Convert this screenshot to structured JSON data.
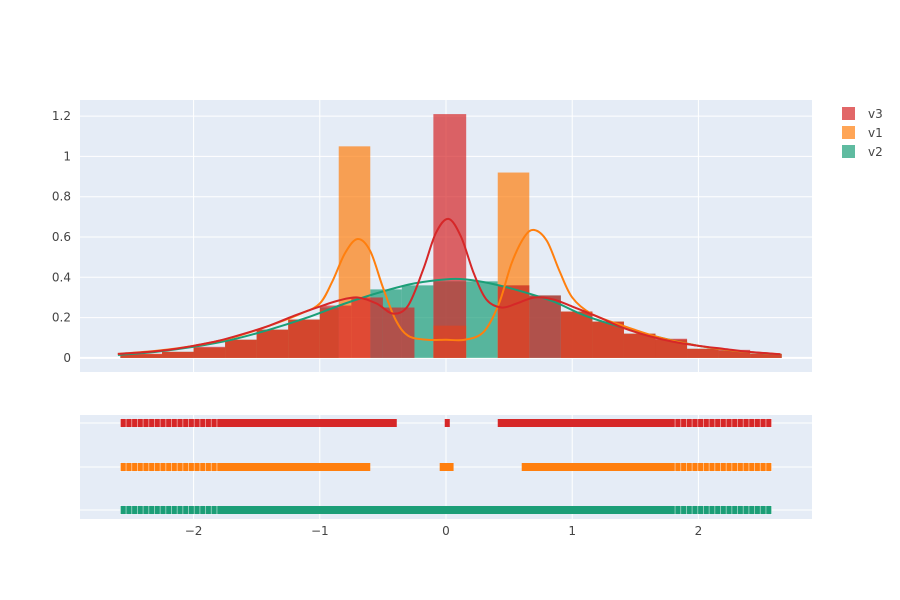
{
  "chart_data": {
    "type": "bar",
    "title": "",
    "xlabel": "",
    "ylabel": "",
    "background": "#e5ecf6",
    "grid": true,
    "legend_position": "top-right",
    "xlim": [
      -2.9,
      2.9
    ],
    "main_ylim": [
      -0.07,
      1.28
    ],
    "xticks": [
      {
        "value": -2,
        "label": "−2"
      },
      {
        "value": -1,
        "label": "−1"
      },
      {
        "value": 0,
        "label": "0"
      },
      {
        "value": 1,
        "label": "1"
      },
      {
        "value": 2,
        "label": "2"
      }
    ],
    "yticks": [
      {
        "value": 0,
        "label": "0"
      },
      {
        "value": 0.2,
        "label": "0.2"
      },
      {
        "value": 0.4,
        "label": "0.4"
      },
      {
        "value": 0.6,
        "label": "0.6"
      },
      {
        "value": 0.8,
        "label": "0.8"
      },
      {
        "value": 1,
        "label": "1"
      },
      {
        "value": 1.2,
        "label": "1.2"
      }
    ],
    "series": [
      {
        "name": "v3",
        "color": "#d62728",
        "bar_opacity": 0.7,
        "bins": [
          {
            "x0": -2.58,
            "x1": -2.25,
            "value": 0.02
          },
          {
            "x0": -2.25,
            "x1": -2.0,
            "value": 0.03
          },
          {
            "x0": -2.0,
            "x1": -1.75,
            "value": 0.055
          },
          {
            "x0": -1.75,
            "x1": -1.5,
            "value": 0.09
          },
          {
            "x0": -1.5,
            "x1": -1.25,
            "value": 0.14
          },
          {
            "x0": -1.25,
            "x1": -1.0,
            "value": 0.19
          },
          {
            "x0": -1.0,
            "x1": -0.75,
            "value": 0.26
          },
          {
            "x0": -0.75,
            "x1": -0.5,
            "value": 0.3
          },
          {
            "x0": -0.5,
            "x1": -0.25,
            "value": 0.25
          },
          {
            "x0": -0.1,
            "x1": 0.16,
            "value": 1.21
          },
          {
            "x0": 0.41,
            "x1": 0.66,
            "value": 0.36
          },
          {
            "x0": 0.66,
            "x1": 0.91,
            "value": 0.31
          },
          {
            "x0": 0.91,
            "x1": 1.16,
            "value": 0.23
          },
          {
            "x0": 1.16,
            "x1": 1.41,
            "value": 0.18
          },
          {
            "x0": 1.41,
            "x1": 1.66,
            "value": 0.12
          },
          {
            "x0": 1.66,
            "x1": 1.91,
            "value": 0.095
          },
          {
            "x0": 1.91,
            "x1": 2.16,
            "value": 0.045
          },
          {
            "x0": 2.16,
            "x1": 2.41,
            "value": 0.04
          },
          {
            "x0": 2.41,
            "x1": 2.66,
            "value": 0.02
          }
        ],
        "kde": [
          [
            -2.6,
            0.02
          ],
          [
            -2.4,
            0.028
          ],
          [
            -2.2,
            0.04
          ],
          [
            -2.0,
            0.06
          ],
          [
            -1.8,
            0.085
          ],
          [
            -1.6,
            0.12
          ],
          [
            -1.4,
            0.16
          ],
          [
            -1.2,
            0.21
          ],
          [
            -1.0,
            0.255
          ],
          [
            -0.85,
            0.285
          ],
          [
            -0.7,
            0.3
          ],
          [
            -0.55,
            0.27
          ],
          [
            -0.42,
            0.22
          ],
          [
            -0.3,
            0.26
          ],
          [
            -0.18,
            0.44
          ],
          [
            -0.08,
            0.62
          ],
          [
            0.02,
            0.69
          ],
          [
            0.12,
            0.6
          ],
          [
            0.22,
            0.42
          ],
          [
            0.32,
            0.29
          ],
          [
            0.44,
            0.25
          ],
          [
            0.56,
            0.27
          ],
          [
            0.7,
            0.3
          ],
          [
            0.85,
            0.29
          ],
          [
            1.0,
            0.255
          ],
          [
            1.2,
            0.205
          ],
          [
            1.4,
            0.15
          ],
          [
            1.6,
            0.11
          ],
          [
            1.8,
            0.08
          ],
          [
            2.0,
            0.06
          ],
          [
            2.2,
            0.045
          ],
          [
            2.4,
            0.03
          ],
          [
            2.65,
            0.018
          ]
        ],
        "rug_segments": [
          [
            -2.58,
            -0.39
          ],
          [
            -0.01,
            0.03
          ],
          [
            0.41,
            2.58
          ]
        ]
      },
      {
        "name": "v1",
        "color": "#ff7f0e",
        "bar_opacity": 0.7,
        "bins": [
          {
            "x0": -2.58,
            "x1": -2.25,
            "value": 0.02
          },
          {
            "x0": -2.25,
            "x1": -2.0,
            "value": 0.03
          },
          {
            "x0": -2.0,
            "x1": -1.75,
            "value": 0.05
          },
          {
            "x0": -1.75,
            "x1": -1.5,
            "value": 0.09
          },
          {
            "x0": -1.5,
            "x1": -1.25,
            "value": 0.14
          },
          {
            "x0": -1.25,
            "x1": -1.0,
            "value": 0.19
          },
          {
            "x0": -1.0,
            "x1": -0.85,
            "value": 0.24
          },
          {
            "x0": -0.85,
            "x1": -0.6,
            "value": 1.05
          },
          {
            "x0": -0.1,
            "x1": 0.16,
            "value": 0.16
          },
          {
            "x0": 0.41,
            "x1": 0.66,
            "value": 0.92
          },
          {
            "x0": 0.91,
            "x1": 1.16,
            "value": 0.23
          },
          {
            "x0": 1.16,
            "x1": 1.41,
            "value": 0.18
          },
          {
            "x0": 1.41,
            "x1": 1.66,
            "value": 0.12
          },
          {
            "x0": 1.66,
            "x1": 1.91,
            "value": 0.09
          },
          {
            "x0": 1.91,
            "x1": 2.16,
            "value": 0.045
          },
          {
            "x0": 2.16,
            "x1": 2.41,
            "value": 0.035
          },
          {
            "x0": 2.41,
            "x1": 2.66,
            "value": 0.02
          }
        ],
        "kde": [
          [
            -2.6,
            0.02
          ],
          [
            -2.3,
            0.035
          ],
          [
            -2.0,
            0.06
          ],
          [
            -1.7,
            0.1
          ],
          [
            -1.4,
            0.16
          ],
          [
            -1.15,
            0.22
          ],
          [
            -1.0,
            0.27
          ],
          [
            -0.9,
            0.38
          ],
          [
            -0.8,
            0.52
          ],
          [
            -0.7,
            0.59
          ],
          [
            -0.6,
            0.53
          ],
          [
            -0.5,
            0.35
          ],
          [
            -0.4,
            0.19
          ],
          [
            -0.3,
            0.11
          ],
          [
            -0.15,
            0.09
          ],
          [
            0.0,
            0.09
          ],
          [
            0.15,
            0.09
          ],
          [
            0.3,
            0.13
          ],
          [
            0.42,
            0.27
          ],
          [
            0.52,
            0.47
          ],
          [
            0.62,
            0.6
          ],
          [
            0.7,
            0.635
          ],
          [
            0.8,
            0.58
          ],
          [
            0.9,
            0.43
          ],
          [
            1.0,
            0.3
          ],
          [
            1.15,
            0.22
          ],
          [
            1.4,
            0.16
          ],
          [
            1.7,
            0.1
          ],
          [
            2.0,
            0.06
          ],
          [
            2.3,
            0.035
          ],
          [
            2.65,
            0.018
          ]
        ],
        "rug_segments": [
          [
            -2.58,
            -0.6
          ],
          [
            -0.05,
            0.06
          ],
          [
            0.6,
            2.58
          ]
        ]
      },
      {
        "name": "v2",
        "color": "#1b9e77",
        "bar_opacity": 0.7,
        "bins": [
          {
            "x0": -2.58,
            "x1": -2.25,
            "value": 0.015
          },
          {
            "x0": -2.25,
            "x1": -2.0,
            "value": 0.03
          },
          {
            "x0": -2.0,
            "x1": -1.75,
            "value": 0.05
          },
          {
            "x0": -1.75,
            "x1": -1.5,
            "value": 0.09
          },
          {
            "x0": -1.5,
            "x1": -1.25,
            "value": 0.14
          },
          {
            "x0": -1.25,
            "x1": -1.0,
            "value": 0.19
          },
          {
            "x0": -1.0,
            "x1": -0.85,
            "value": 0.25
          },
          {
            "x0": -0.6,
            "x1": -0.35,
            "value": 0.34
          },
          {
            "x0": -0.35,
            "x1": -0.1,
            "value": 0.36
          },
          {
            "x0": -0.1,
            "x1": 0.16,
            "value": 0.38
          },
          {
            "x0": 0.16,
            "x1": 0.41,
            "value": 0.38
          },
          {
            "x0": 0.41,
            "x1": 0.66,
            "value": 0.36
          },
          {
            "x0": 0.66,
            "x1": 0.91,
            "value": 0.31
          },
          {
            "x0": 0.91,
            "x1": 1.16,
            "value": 0.23
          },
          {
            "x0": 1.16,
            "x1": 1.41,
            "value": 0.18
          },
          {
            "x0": 1.41,
            "x1": 1.66,
            "value": 0.12
          },
          {
            "x0": 1.66,
            "x1": 1.91,
            "value": 0.09
          },
          {
            "x0": 1.91,
            "x1": 2.16,
            "value": 0.045
          },
          {
            "x0": 2.16,
            "x1": 2.41,
            "value": 0.035
          },
          {
            "x0": 2.41,
            "x1": 2.66,
            "value": 0.02
          }
        ],
        "kde": [
          [
            -2.6,
            0.015
          ],
          [
            -2.3,
            0.03
          ],
          [
            -2.0,
            0.055
          ],
          [
            -1.7,
            0.09
          ],
          [
            -1.4,
            0.14
          ],
          [
            -1.1,
            0.2
          ],
          [
            -0.8,
            0.27
          ],
          [
            -0.5,
            0.33
          ],
          [
            -0.25,
            0.37
          ],
          [
            0.0,
            0.39
          ],
          [
            0.15,
            0.39
          ],
          [
            0.35,
            0.37
          ],
          [
            0.6,
            0.33
          ],
          [
            0.85,
            0.28
          ],
          [
            1.1,
            0.21
          ],
          [
            1.4,
            0.15
          ],
          [
            1.7,
            0.1
          ],
          [
            2.0,
            0.06
          ],
          [
            2.3,
            0.035
          ],
          [
            2.65,
            0.017
          ]
        ],
        "rug_segments": [
          [
            -2.58,
            2.58
          ]
        ]
      }
    ]
  },
  "legend": {
    "items": [
      {
        "label": "v3",
        "color": "#d62728"
      },
      {
        "label": "v1",
        "color": "#ff7f0e"
      },
      {
        "label": "v2",
        "color": "#1b9e77"
      }
    ]
  }
}
